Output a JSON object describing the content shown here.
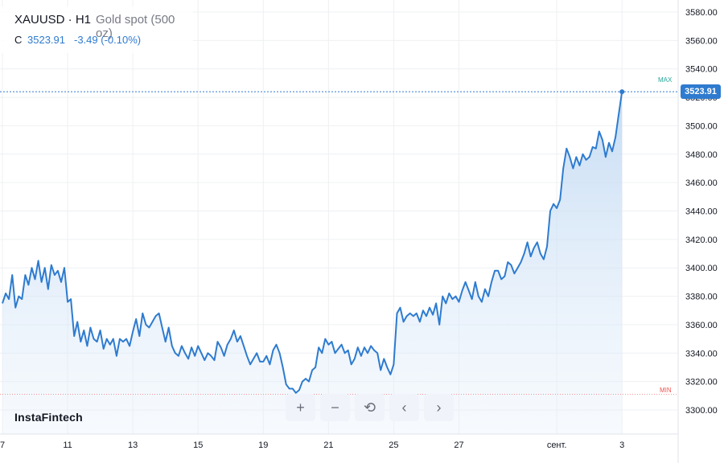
{
  "header": {
    "symbol": "XAUUSD · H1",
    "description": "Gold spot (500 oz)",
    "close_label": "C",
    "close_value": "3523.91",
    "change": "-3.49 (-0.10%)"
  },
  "brand": "InstaFintech",
  "controls": [
    {
      "name": "zoom-in",
      "glyph": "+"
    },
    {
      "name": "zoom-out",
      "glyph": "−"
    },
    {
      "name": "reset",
      "glyph": "⟲"
    },
    {
      "name": "scroll-left",
      "glyph": "‹"
    },
    {
      "name": "scroll-right",
      "glyph": "›"
    }
  ],
  "current_price_label": "3523.91",
  "markers": {
    "max": "MAX",
    "min": "MIN"
  },
  "colors": {
    "line": "#2e7bcf",
    "fill_top": "#bcd6f2",
    "grid": "#eef0f3",
    "max": "#26a69a",
    "min": "#ef5350"
  },
  "chart_data": {
    "type": "area",
    "ylim": [
      3290,
      3590
    ],
    "yticks": [
      3300,
      3320,
      3340,
      3360,
      3380,
      3400,
      3420,
      3440,
      3460,
      3480,
      3500,
      3520,
      3540,
      3560,
      3580
    ],
    "ytick_labels": [
      "3300.00",
      "3320.00",
      "3340.00",
      "3360.00",
      "3380.00",
      "3400.00",
      "3420.00",
      "3440.00",
      "3460.00",
      "3480.00",
      "3500.00",
      "3520.00",
      "3540.00",
      "3560.00",
      "3580.00"
    ],
    "xlim": [
      0,
      200
    ],
    "xticks": [
      {
        "x": 0,
        "label": "7"
      },
      {
        "x": 20,
        "label": "11"
      },
      {
        "x": 40,
        "label": "13"
      },
      {
        "x": 60,
        "label": "15"
      },
      {
        "x": 80,
        "label": "19"
      },
      {
        "x": 100,
        "label": "21"
      },
      {
        "x": 120,
        "label": "25"
      },
      {
        "x": 140,
        "label": "27"
      },
      {
        "x": 170,
        "label": "сент."
      },
      {
        "x": 190,
        "label": "3"
      }
    ],
    "max_value": 3526,
    "min_value": 3311,
    "last_value": 3523.91,
    "x": [
      0,
      1,
      2,
      3,
      4,
      5,
      6,
      7,
      8,
      9,
      10,
      11,
      12,
      13,
      14,
      15,
      16,
      17,
      18,
      19,
      20,
      21,
      22,
      23,
      24,
      25,
      26,
      27,
      28,
      29,
      30,
      31,
      32,
      33,
      34,
      35,
      36,
      37,
      38,
      39,
      40,
      41,
      42,
      43,
      44,
      45,
      46,
      47,
      48,
      49,
      50,
      51,
      52,
      53,
      54,
      55,
      56,
      57,
      58,
      59,
      60,
      61,
      62,
      63,
      64,
      65,
      66,
      67,
      68,
      69,
      70,
      71,
      72,
      73,
      74,
      75,
      76,
      77,
      78,
      79,
      80,
      81,
      82,
      83,
      84,
      85,
      86,
      87,
      88,
      89,
      90,
      91,
      92,
      93,
      94,
      95,
      96,
      97,
      98,
      99,
      100,
      101,
      102,
      103,
      104,
      105,
      106,
      107,
      108,
      109,
      110,
      111,
      112,
      113,
      114,
      115,
      116,
      117,
      118,
      119,
      120,
      121,
      122,
      123,
      124,
      125,
      126,
      127,
      128,
      129,
      130,
      131,
      132,
      133,
      134,
      135,
      136,
      137,
      138,
      139,
      140,
      141,
      142,
      143,
      144,
      145,
      146,
      147,
      148,
      149,
      150,
      151,
      152,
      153,
      154,
      155,
      156,
      157,
      158,
      159,
      160,
      161,
      162,
      163,
      164,
      165,
      166,
      167,
      168,
      169,
      170,
      171,
      172,
      173,
      174,
      175,
      176,
      177,
      178,
      179,
      180,
      181,
      182,
      183,
      184,
      185,
      186,
      187,
      188,
      189,
      190
    ],
    "values": [
      3375,
      3382,
      3378,
      3395,
      3372,
      3380,
      3378,
      3395,
      3388,
      3400,
      3392,
      3405,
      3390,
      3400,
      3385,
      3402,
      3395,
      3398,
      3390,
      3400,
      3376,
      3378,
      3352,
      3362,
      3348,
      3356,
      3345,
      3358,
      3350,
      3348,
      3356,
      3343,
      3350,
      3346,
      3350,
      3338,
      3350,
      3348,
      3350,
      3345,
      3355,
      3364,
      3352,
      3368,
      3360,
      3358,
      3362,
      3366,
      3368,
      3358,
      3348,
      3358,
      3345,
      3340,
      3338,
      3345,
      3340,
      3336,
      3344,
      3338,
      3345,
      3340,
      3335,
      3340,
      3338,
      3335,
      3348,
      3344,
      3338,
      3346,
      3350,
      3356,
      3348,
      3352,
      3345,
      3338,
      3332,
      3336,
      3340,
      3334,
      3334,
      3338,
      3332,
      3342,
      3346,
      3340,
      3330,
      3318,
      3315,
      3315,
      3312,
      3314,
      3320,
      3322,
      3320,
      3328,
      3330,
      3344,
      3340,
      3350,
      3346,
      3348,
      3340,
      3343,
      3346,
      3340,
      3342,
      3332,
      3336,
      3344,
      3338,
      3344,
      3340,
      3345,
      3342,
      3340,
      3328,
      3336,
      3330,
      3325,
      3332,
      3368,
      3372,
      3362,
      3366,
      3368,
      3366,
      3368,
      3362,
      3370,
      3366,
      3372,
      3367,
      3375,
      3360,
      3380,
      3375,
      3382,
      3378,
      3380,
      3376,
      3384,
      3390,
      3384,
      3378,
      3390,
      3380,
      3376,
      3385,
      3380,
      3390,
      3398,
      3398,
      3392,
      3394,
      3404,
      3402,
      3396,
      3400,
      3404,
      3410,
      3418,
      3408,
      3414,
      3418,
      3410,
      3406,
      3415,
      3440,
      3445,
      3442,
      3448,
      3470,
      3484,
      3478,
      3470,
      3478,
      3472,
      3480,
      3476,
      3478,
      3485,
      3484,
      3496,
      3490,
      3478,
      3488,
      3482,
      3492,
      3508,
      3524
    ]
  }
}
